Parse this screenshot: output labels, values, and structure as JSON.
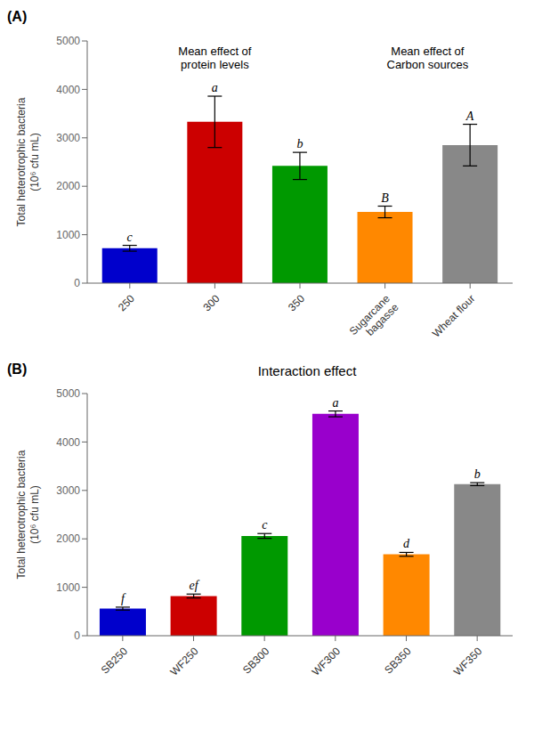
{
  "chart_data": [
    {
      "type": "bar",
      "panel_label": "(A)",
      "annotations": [
        "Mean effect of\nprotein levels",
        "Mean effect of\nCarbon sources"
      ],
      "categories": [
        "250",
        "300",
        "350",
        "Sugarcane\nbagasse",
        "Wheat flour"
      ],
      "values": [
        720,
        3330,
        2420,
        1470,
        2850
      ],
      "errors": [
        60,
        530,
        280,
        120,
        430
      ],
      "letters": [
        "c",
        "a",
        "b",
        "B",
        "A"
      ],
      "colors": [
        "#0000CC",
        "#CC0000",
        "#009900",
        "#FF8800",
        "#888888"
      ],
      "ylabel": "Total heterotrophic bacteria\n(10⁶ cfu mL)",
      "ylim": [
        0,
        5000
      ],
      "yticks": [
        0,
        1000,
        2000,
        3000,
        4000,
        5000
      ],
      "grid": false
    },
    {
      "type": "bar",
      "panel_label": "(B)",
      "title": "Interaction effect",
      "categories": [
        "SB250",
        "WF250",
        "SB300",
        "WF300",
        "SB350",
        "WF350"
      ],
      "values": [
        560,
        820,
        2060,
        4580,
        1680,
        3130
      ],
      "errors": [
        30,
        40,
        50,
        60,
        40,
        30
      ],
      "letters": [
        "f",
        "ef",
        "c",
        "a",
        "d",
        "b"
      ],
      "colors": [
        "#0000CC",
        "#CC0000",
        "#009900",
        "#9900CC",
        "#FF8800",
        "#888888"
      ],
      "ylabel": "Total heterotrophic bacteria\n(10⁶ cfu mL)",
      "ylim": [
        0,
        5000
      ],
      "yticks": [
        0,
        1000,
        2000,
        3000,
        4000,
        5000
      ],
      "grid": false
    }
  ]
}
